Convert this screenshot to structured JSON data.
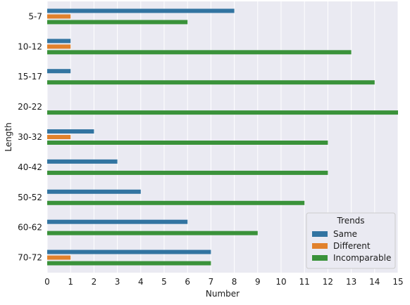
{
  "chart_data": {
    "type": "bar",
    "orientation": "horizontal",
    "categories": [
      "5-7",
      "10-12",
      "15-17",
      "20-22",
      "30-32",
      "40-42",
      "50-52",
      "60-62",
      "70-72"
    ],
    "series": [
      {
        "name": "Same",
        "color": "#3274a1",
        "values": [
          8,
          1,
          1,
          0,
          2,
          3,
          4,
          6,
          7
        ]
      },
      {
        "name": "Different",
        "color": "#e1812c",
        "values": [
          1,
          1,
          0,
          0,
          1,
          0,
          0,
          0,
          1
        ]
      },
      {
        "name": "Incomparable",
        "color": "#3a923a",
        "values": [
          6,
          13,
          14,
          15,
          12,
          12,
          11,
          9,
          7
        ]
      }
    ],
    "xlabel": "Number",
    "ylabel": "Length",
    "xlim": [
      0,
      15
    ],
    "xticks": [
      0,
      1,
      2,
      3,
      4,
      5,
      6,
      7,
      8,
      9,
      10,
      11,
      12,
      13,
      14,
      15
    ],
    "grid": true,
    "background": "#eaeaf2",
    "legend": {
      "title": "Trends",
      "position": "bottom-right"
    }
  }
}
